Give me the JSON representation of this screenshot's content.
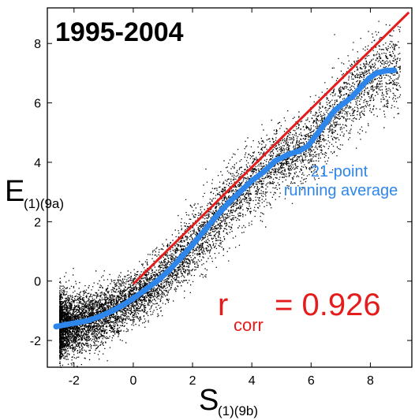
{
  "chart_data": {
    "type": "scatter",
    "title": "1995-2004",
    "xlabel": {
      "main": "S",
      "sub": "(1)(9b)"
    },
    "ylabel": {
      "main": "E",
      "sub": "(1)(9a)"
    },
    "xlim": [
      -2.9,
      9.4
    ],
    "ylim": [
      -2.9,
      9.2
    ],
    "xticks": [
      -2,
      0,
      2,
      4,
      6,
      8
    ],
    "yticks": [
      -2,
      0,
      2,
      4,
      6,
      8
    ],
    "grid": false,
    "series": [
      {
        "kind": "scatter-cloud",
        "color": "#000000",
        "description_points": "dense cloud of individual samples along the diagonal"
      },
      {
        "name": "21-point running average",
        "kind": "running-average",
        "color": "#2f86ea",
        "points": [
          [
            -2.6,
            -1.53
          ],
          [
            -2.3,
            -1.47
          ],
          [
            -1.9,
            -1.4
          ],
          [
            -1.5,
            -1.32
          ],
          [
            -1.1,
            -1.18
          ],
          [
            -0.7,
            -1.0
          ],
          [
            -0.3,
            -0.78
          ],
          [
            0.0,
            -0.58
          ],
          [
            0.4,
            -0.3
          ],
          [
            0.8,
            0.0
          ],
          [
            1.2,
            0.35
          ],
          [
            1.6,
            0.78
          ],
          [
            2.0,
            1.22
          ],
          [
            2.4,
            1.7
          ],
          [
            2.8,
            2.18
          ],
          [
            3.2,
            2.62
          ],
          [
            3.6,
            3.0
          ],
          [
            4.0,
            3.38
          ],
          [
            4.4,
            3.68
          ],
          [
            4.8,
            4.05
          ],
          [
            5.2,
            4.25
          ],
          [
            5.6,
            4.38
          ],
          [
            5.9,
            4.55
          ],
          [
            6.2,
            4.95
          ],
          [
            6.5,
            5.35
          ],
          [
            6.8,
            5.75
          ],
          [
            7.1,
            5.98
          ],
          [
            7.4,
            6.22
          ],
          [
            7.7,
            6.55
          ],
          [
            7.95,
            6.82
          ],
          [
            8.2,
            7.0
          ],
          [
            8.5,
            7.08
          ],
          [
            8.8,
            7.1
          ]
        ]
      },
      {
        "name": "linear fit",
        "kind": "fit-line",
        "color": "#e41c1c",
        "points": [
          [
            0.0,
            -0.1
          ],
          [
            9.3,
            9.05
          ]
        ]
      }
    ],
    "annotations": {
      "running_average_label": [
        "21-point",
        "running average"
      ],
      "r_symbol": "r",
      "r_subscript": "corr",
      "r_value_text": "= 0.926"
    }
  }
}
